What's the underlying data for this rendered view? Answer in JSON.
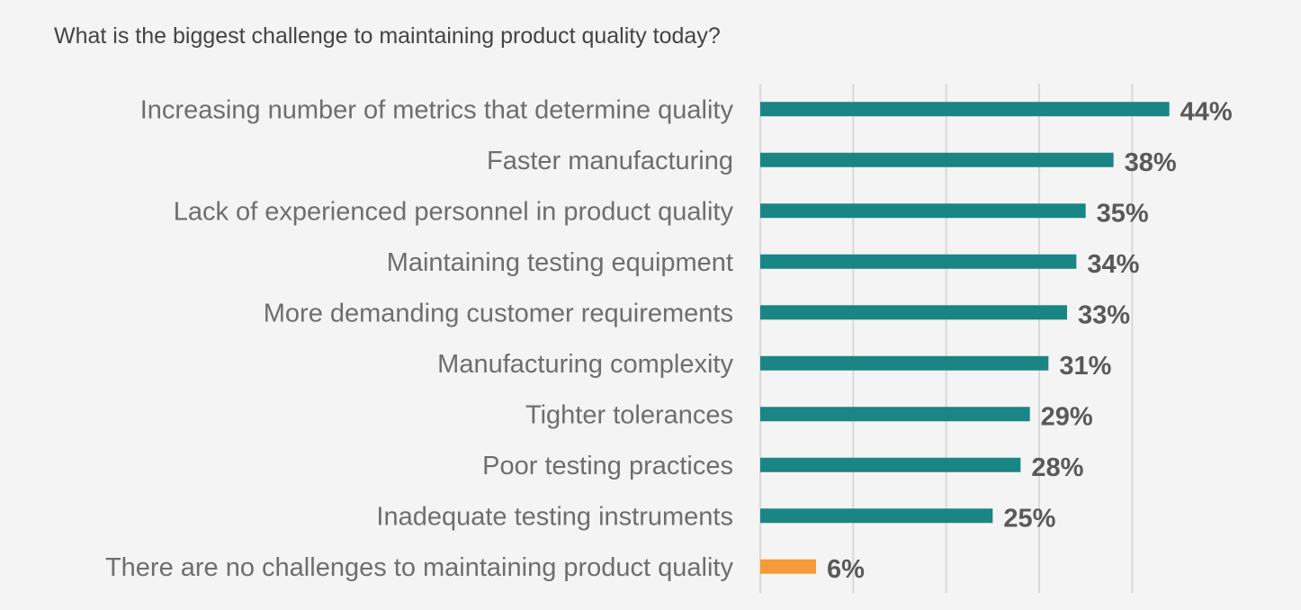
{
  "chart_data": {
    "type": "bar",
    "orientation": "horizontal",
    "title": "What is the biggest challenge to maintaining product quality today?",
    "categories": [
      "Increasing number of metrics that determine quality",
      "Faster manufacturing",
      "Lack of experienced personnel in product quality",
      "Maintaining testing equipment",
      "More demanding customer requirements",
      "Manufacturing complexity",
      "Tighter tolerances",
      "Poor testing practices",
      "Inadequate testing instruments",
      "There are no challenges to maintaining product quality"
    ],
    "values": [
      44,
      38,
      35,
      34,
      33,
      31,
      29,
      28,
      25,
      6
    ],
    "value_labels": [
      "44%",
      "38%",
      "35%",
      "34%",
      "33%",
      "31%",
      "29%",
      "28%",
      "25%",
      "6%"
    ],
    "bar_colors": [
      "#1a8585",
      "#1a8585",
      "#1a8585",
      "#1a8585",
      "#1a8585",
      "#1a8585",
      "#1a8585",
      "#1a8585",
      "#1a8585",
      "#f59b3a"
    ],
    "xlim": [
      0,
      60
    ],
    "grid": true,
    "xlabel": "",
    "ylabel": ""
  }
}
